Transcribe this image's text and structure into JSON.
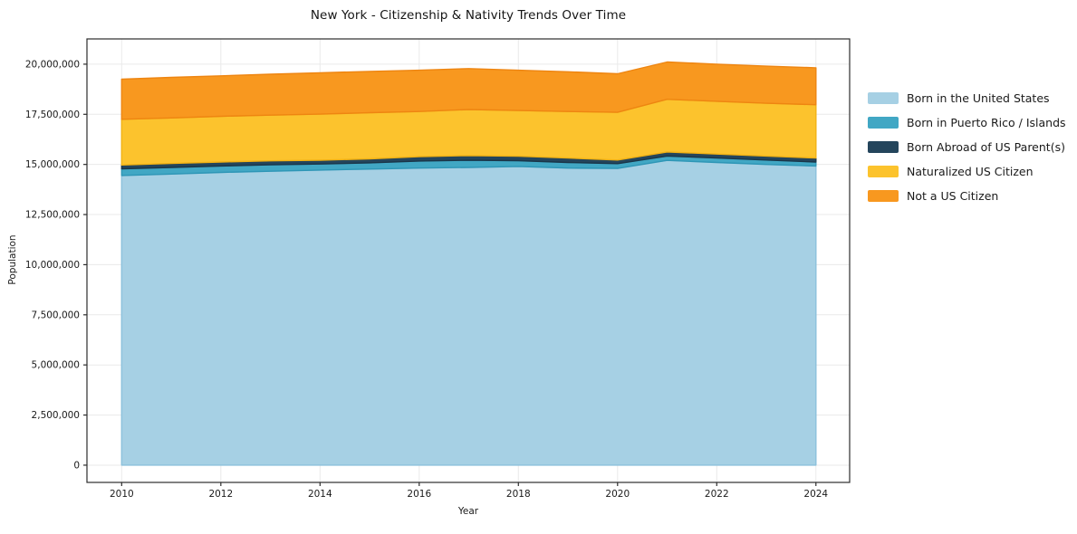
{
  "title": "New York - Citizenship & Nativity Trends Over Time",
  "chart_data": {
    "type": "area",
    "stacked": true,
    "title": "New York - Citizenship & Nativity Trends Over Time",
    "xlabel": "Year",
    "ylabel": "Population",
    "grid": true,
    "legend_position": "right of plot, frameless",
    "x": [
      2010,
      2011,
      2012,
      2013,
      2014,
      2015,
      2016,
      2017,
      2018,
      2019,
      2020,
      2021,
      2022,
      2023,
      2024
    ],
    "xticks": [
      2010,
      2012,
      2014,
      2016,
      2018,
      2020,
      2022,
      2024
    ],
    "yticks": [
      0,
      2500000,
      5000000,
      7500000,
      10000000,
      12500000,
      15000000,
      17500000,
      20000000
    ],
    "xlim": [
      2009.3,
      2024.68
    ],
    "ylim": [
      -860000,
      21260000
    ],
    "series": [
      {
        "name": "Born in the United States",
        "color": "#a6d0e4",
        "edge_color": "#8cc1dc",
        "values": [
          14450000,
          14520000,
          14600000,
          14660000,
          14720000,
          14770000,
          14820000,
          14850000,
          14900000,
          14820000,
          14800000,
          15200000,
          15100000,
          15000000,
          14920000
        ]
      },
      {
        "name": "Born in Puerto Rico / Islands",
        "color": "#41a7c4",
        "edge_color": "#2e96b6",
        "values": [
          330000,
          330000,
          320000,
          320000,
          300000,
          310000,
          350000,
          360000,
          290000,
          280000,
          240000,
          220000,
          220000,
          220000,
          200000
        ]
      },
      {
        "name": "Born Abroad of US Parent(s)",
        "color": "#24455c",
        "edge_color": "#1a3649",
        "values": [
          190000,
          200000,
          200000,
          200000,
          190000,
          200000,
          220000,
          230000,
          220000,
          220000,
          180000,
          200000,
          200000,
          200000,
          200000
        ]
      },
      {
        "name": "Naturalized US Citizen",
        "color": "#fcc32d",
        "edge_color": "#f2b214",
        "values": [
          2280000,
          2270000,
          2280000,
          2280000,
          2300000,
          2300000,
          2250000,
          2300000,
          2280000,
          2320000,
          2380000,
          2630000,
          2630000,
          2630000,
          2660000
        ]
      },
      {
        "name": "Not a US Citizen",
        "color": "#f8981f",
        "edge_color": "#ee8511",
        "values": [
          2000000,
          2020000,
          2020000,
          2040000,
          2060000,
          2060000,
          2060000,
          2040000,
          2010000,
          1980000,
          1920000,
          1860000,
          1850000,
          1850000,
          1840000
        ]
      }
    ]
  }
}
